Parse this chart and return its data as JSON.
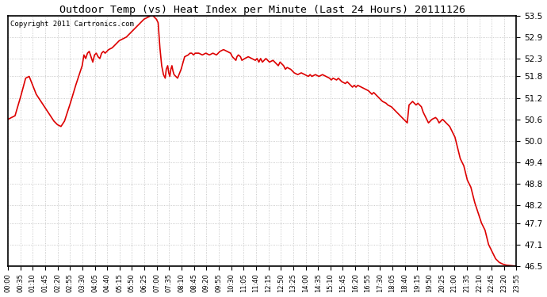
{
  "title": "Outdoor Temp (vs) Heat Index per Minute (Last 24 Hours) 20111126",
  "copyright_text": "Copyright 2011 Cartronics.com",
  "background_color": "#ffffff",
  "plot_bg_color": "#ffffff",
  "grid_color": "#bbbbbb",
  "line_color": "#dd0000",
  "line_width": 1.2,
  "ylim": [
    46.5,
    53.5
  ],
  "yticks": [
    46.5,
    47.1,
    47.7,
    48.2,
    48.8,
    49.4,
    50.0,
    50.6,
    51.2,
    51.8,
    52.3,
    52.9,
    53.5
  ],
  "xtick_labels": [
    "00:00",
    "00:35",
    "01:10",
    "01:45",
    "02:20",
    "02:55",
    "03:30",
    "04:05",
    "04:40",
    "05:15",
    "05:50",
    "06:25",
    "07:00",
    "07:35",
    "08:10",
    "08:45",
    "09:20",
    "09:55",
    "10:30",
    "11:05",
    "11:40",
    "12:15",
    "12:50",
    "13:25",
    "14:00",
    "14:35",
    "15:10",
    "15:45",
    "16:20",
    "16:55",
    "17:30",
    "18:05",
    "18:40",
    "19:15",
    "19:50",
    "20:25",
    "21:00",
    "21:35",
    "22:10",
    "22:45",
    "23:20",
    "23:55"
  ],
  "data_shape": [
    [
      0,
      50.6
    ],
    [
      10,
      50.65
    ],
    [
      20,
      50.7
    ],
    [
      35,
      51.2
    ],
    [
      50,
      51.75
    ],
    [
      60,
      51.8
    ],
    [
      70,
      51.55
    ],
    [
      80,
      51.3
    ],
    [
      90,
      51.15
    ],
    [
      100,
      51.0
    ],
    [
      110,
      50.85
    ],
    [
      120,
      50.7
    ],
    [
      130,
      50.55
    ],
    [
      140,
      50.45
    ],
    [
      150,
      50.4
    ],
    [
      160,
      50.55
    ],
    [
      175,
      51.0
    ],
    [
      190,
      51.5
    ],
    [
      200,
      51.8
    ],
    [
      210,
      52.1
    ],
    [
      215,
      52.4
    ],
    [
      220,
      52.3
    ],
    [
      225,
      52.45
    ],
    [
      230,
      52.5
    ],
    [
      235,
      52.35
    ],
    [
      240,
      52.2
    ],
    [
      245,
      52.4
    ],
    [
      250,
      52.45
    ],
    [
      255,
      52.35
    ],
    [
      260,
      52.3
    ],
    [
      265,
      52.45
    ],
    [
      270,
      52.5
    ],
    [
      275,
      52.45
    ],
    [
      280,
      52.5
    ],
    [
      285,
      52.55
    ],
    [
      295,
      52.6
    ],
    [
      305,
      52.7
    ],
    [
      315,
      52.8
    ],
    [
      325,
      52.85
    ],
    [
      335,
      52.9
    ],
    [
      345,
      53.0
    ],
    [
      355,
      53.1
    ],
    [
      365,
      53.2
    ],
    [
      375,
      53.3
    ],
    [
      385,
      53.4
    ],
    [
      395,
      53.45
    ],
    [
      405,
      53.5
    ],
    [
      410,
      53.5
    ],
    [
      415,
      53.45
    ],
    [
      420,
      53.4
    ],
    [
      425,
      53.3
    ],
    [
      430,
      52.6
    ],
    [
      435,
      52.1
    ],
    [
      440,
      51.85
    ],
    [
      445,
      51.75
    ],
    [
      448,
      52.0
    ],
    [
      452,
      52.1
    ],
    [
      455,
      51.9
    ],
    [
      458,
      51.8
    ],
    [
      461,
      52.0
    ],
    [
      464,
      52.1
    ],
    [
      467,
      51.95
    ],
    [
      470,
      51.85
    ],
    [
      475,
      51.8
    ],
    [
      480,
      51.75
    ],
    [
      490,
      52.0
    ],
    [
      500,
      52.35
    ],
    [
      510,
      52.4
    ],
    [
      515,
      52.45
    ],
    [
      520,
      52.45
    ],
    [
      525,
      52.4
    ],
    [
      530,
      52.45
    ],
    [
      540,
      52.45
    ],
    [
      550,
      52.4
    ],
    [
      560,
      52.45
    ],
    [
      570,
      52.4
    ],
    [
      580,
      52.45
    ],
    [
      590,
      52.4
    ],
    [
      600,
      52.5
    ],
    [
      610,
      52.55
    ],
    [
      620,
      52.5
    ],
    [
      630,
      52.45
    ],
    [
      635,
      52.35
    ],
    [
      640,
      52.3
    ],
    [
      645,
      52.25
    ],
    [
      648,
      52.35
    ],
    [
      652,
      52.4
    ],
    [
      658,
      52.35
    ],
    [
      662,
      52.25
    ],
    [
      670,
      52.3
    ],
    [
      680,
      52.35
    ],
    [
      690,
      52.3
    ],
    [
      700,
      52.25
    ],
    [
      705,
      52.3
    ],
    [
      710,
      52.2
    ],
    [
      715,
      52.3
    ],
    [
      720,
      52.2
    ],
    [
      730,
      52.3
    ],
    [
      740,
      52.2
    ],
    [
      750,
      52.25
    ],
    [
      755,
      52.2
    ],
    [
      760,
      52.15
    ],
    [
      765,
      52.1
    ],
    [
      770,
      52.2
    ],
    [
      775,
      52.15
    ],
    [
      780,
      52.1
    ],
    [
      785,
      52.0
    ],
    [
      790,
      52.05
    ],
    [
      800,
      52.0
    ],
    [
      805,
      51.95
    ],
    [
      810,
      51.9
    ],
    [
      820,
      51.85
    ],
    [
      830,
      51.9
    ],
    [
      840,
      51.85
    ],
    [
      850,
      51.8
    ],
    [
      855,
      51.85
    ],
    [
      860,
      51.8
    ],
    [
      870,
      51.85
    ],
    [
      880,
      51.8
    ],
    [
      890,
      51.85
    ],
    [
      900,
      51.8
    ],
    [
      910,
      51.75
    ],
    [
      915,
      51.7
    ],
    [
      920,
      51.75
    ],
    [
      930,
      51.7
    ],
    [
      935,
      51.75
    ],
    [
      940,
      51.7
    ],
    [
      945,
      51.65
    ],
    [
      955,
      51.6
    ],
    [
      960,
      51.65
    ],
    [
      965,
      51.6
    ],
    [
      970,
      51.55
    ],
    [
      975,
      51.5
    ],
    [
      980,
      51.55
    ],
    [
      985,
      51.5
    ],
    [
      990,
      51.55
    ],
    [
      1000,
      51.5
    ],
    [
      1010,
      51.45
    ],
    [
      1020,
      51.4
    ],
    [
      1025,
      51.35
    ],
    [
      1030,
      51.3
    ],
    [
      1035,
      51.35
    ],
    [
      1040,
      51.3
    ],
    [
      1045,
      51.25
    ],
    [
      1050,
      51.2
    ],
    [
      1055,
      51.15
    ],
    [
      1060,
      51.1
    ],
    [
      1070,
      51.05
    ],
    [
      1075,
      51.0
    ],
    [
      1085,
      50.95
    ],
    [
      1090,
      50.9
    ],
    [
      1095,
      50.85
    ],
    [
      1100,
      50.8
    ],
    [
      1110,
      50.7
    ],
    [
      1115,
      50.65
    ],
    [
      1120,
      50.6
    ],
    [
      1130,
      50.5
    ],
    [
      1135,
      51.0
    ],
    [
      1140,
      51.05
    ],
    [
      1145,
      51.1
    ],
    [
      1150,
      51.05
    ],
    [
      1155,
      51.0
    ],
    [
      1160,
      51.05
    ],
    [
      1165,
      51.0
    ],
    [
      1170,
      50.95
    ],
    [
      1175,
      50.8
    ],
    [
      1180,
      50.7
    ],
    [
      1185,
      50.6
    ],
    [
      1190,
      50.5
    ],
    [
      1200,
      50.6
    ],
    [
      1210,
      50.65
    ],
    [
      1215,
      50.6
    ],
    [
      1220,
      50.5
    ],
    [
      1225,
      50.55
    ],
    [
      1230,
      50.6
    ],
    [
      1235,
      50.55
    ],
    [
      1240,
      50.5
    ],
    [
      1250,
      50.4
    ],
    [
      1255,
      50.3
    ],
    [
      1265,
      50.1
    ],
    [
      1270,
      49.9
    ],
    [
      1275,
      49.7
    ],
    [
      1280,
      49.5
    ],
    [
      1290,
      49.3
    ],
    [
      1295,
      49.1
    ],
    [
      1300,
      48.9
    ],
    [
      1310,
      48.7
    ],
    [
      1315,
      48.5
    ],
    [
      1320,
      48.3
    ],
    [
      1330,
      48.0
    ],
    [
      1340,
      47.7
    ],
    [
      1350,
      47.5
    ],
    [
      1355,
      47.3
    ],
    [
      1360,
      47.1
    ],
    [
      1370,
      46.9
    ],
    [
      1380,
      46.7
    ],
    [
      1390,
      46.6
    ],
    [
      1400,
      46.55
    ],
    [
      1410,
      46.52
    ],
    [
      1420,
      46.51
    ],
    [
      1430,
      46.5
    ],
    [
      1439,
      46.5
    ]
  ]
}
